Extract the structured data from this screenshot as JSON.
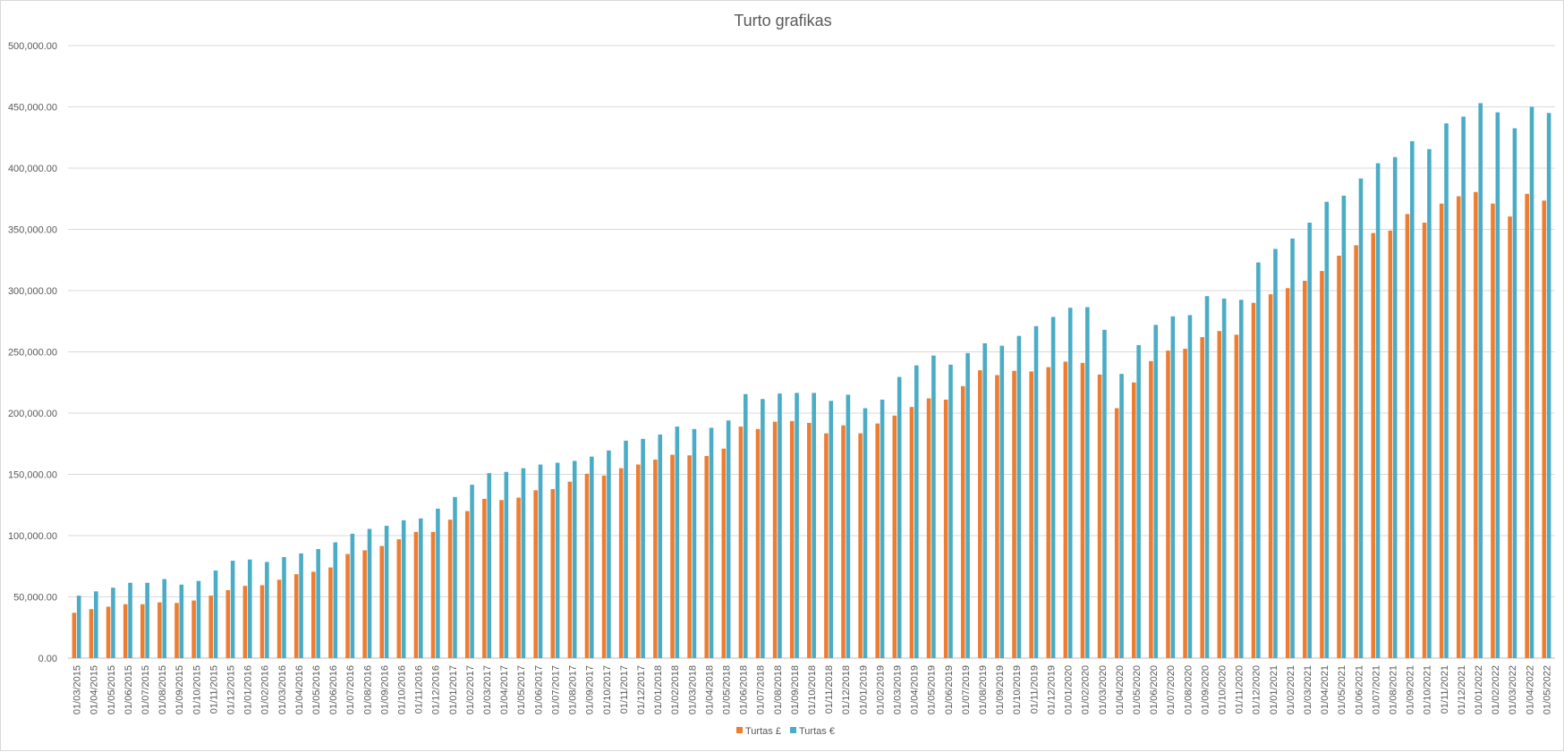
{
  "chart_data": {
    "type": "bar",
    "title": "Turto grafikas",
    "xlabel": "",
    "ylabel": "",
    "ylim": [
      0,
      500000
    ],
    "yticks": [
      "0.00",
      "50,000.00",
      "100,000.00",
      "150,000.00",
      "200,000.00",
      "250,000.00",
      "300,000.00",
      "350,000.00",
      "400,000.00",
      "450,000.00",
      "500,000.00"
    ],
    "grid": true,
    "legend_position": "bottom",
    "categories": [
      "01/03/2015",
      "01/04/2015",
      "01/05/2015",
      "01/06/2015",
      "01/07/2015",
      "01/08/2015",
      "01/09/2015",
      "01/10/2015",
      "01/11/2015",
      "01/12/2015",
      "01/01/2016",
      "01/02/2016",
      "01/03/2016",
      "01/04/2016",
      "01/05/2016",
      "01/06/2016",
      "01/07/2016",
      "01/08/2016",
      "01/09/2016",
      "01/10/2016",
      "01/11/2016",
      "01/12/2016",
      "01/01/2017",
      "01/02/2017",
      "01/03/2017",
      "01/04/2017",
      "01/05/2017",
      "01/06/2017",
      "01/07/2017",
      "01/08/2017",
      "01/09/2017",
      "01/10/2017",
      "01/11/2017",
      "01/12/2017",
      "01/01/2018",
      "01/02/2018",
      "01/03/2018",
      "01/04/2018",
      "01/05/2018",
      "01/06/2018",
      "01/07/2018",
      "01/08/2018",
      "01/09/2018",
      "01/10/2018",
      "01/11/2018",
      "01/12/2018",
      "01/01/2019",
      "01/02/2019",
      "01/03/2019",
      "01/04/2019",
      "01/05/2019",
      "01/06/2019",
      "01/07/2019",
      "01/08/2019",
      "01/09/2019",
      "01/10/2019",
      "01/11/2019",
      "01/12/2019",
      "01/01/2020",
      "01/02/2020",
      "01/03/2020",
      "01/04/2020",
      "01/05/2020",
      "01/06/2020",
      "01/07/2020",
      "01/08/2020",
      "01/09/2020",
      "01/10/2020",
      "01/11/2020",
      "01/12/2020",
      "01/01/2021",
      "01/02/2021",
      "01/03/2021",
      "01/04/2021",
      "01/05/2021",
      "01/06/2021",
      "01/07/2021",
      "01/08/2021",
      "01/09/2021",
      "01/10/2021",
      "01/11/2021",
      "01/12/2021",
      "01/01/2022",
      "01/02/2022",
      "01/03/2022",
      "01/04/2022",
      "01/05/2022"
    ],
    "series": [
      {
        "name": "Turtas £",
        "color": "#ed7d31",
        "values": [
          37000,
          40000,
          42000,
          44000,
          44000,
          45500,
          45000,
          47000,
          51000,
          55500,
          59000,
          59500,
          64000,
          68500,
          70500,
          74000,
          85000,
          88000,
          91500,
          97000,
          103000,
          103000,
          113000,
          120000,
          130000,
          129000,
          131000,
          137000,
          138000,
          144000,
          150500,
          149000,
          155000,
          158000,
          162000,
          166000,
          165500,
          165000,
          171000,
          189000,
          187000,
          193000,
          193500,
          192000,
          183500,
          190000,
          183500,
          191500,
          198000,
          205000,
          212000,
          211000,
          222000,
          235000,
          231000,
          234500,
          234000,
          237500,
          242000,
          241000,
          231500,
          204000,
          225000,
          242500,
          251000,
          252500,
          262000,
          267000,
          264000,
          290000,
          297000,
          302000,
          308000,
          316000,
          328500,
          337000,
          347000,
          349000,
          362500,
          355500,
          371000,
          377000,
          380500,
          371000,
          360500,
          379000,
          373500
        ]
      },
      {
        "name": "Turtas €",
        "color": "#4bacc6",
        "values": [
          51000,
          54500,
          57500,
          61500,
          61500,
          64500,
          60000,
          63000,
          71500,
          79500,
          80500,
          78500,
          82500,
          85500,
          89000,
          94500,
          101500,
          105500,
          108000,
          112500,
          114000,
          122000,
          131500,
          141500,
          151000,
          152000,
          155000,
          158000,
          159500,
          161000,
          164500,
          169500,
          177500,
          179000,
          182500,
          189000,
          187000,
          188000,
          194000,
          215500,
          211500,
          216000,
          216500,
          216500,
          210000,
          215000,
          204000,
          211000,
          229500,
          239000,
          247000,
          239500,
          249000,
          257000,
          255000,
          263000,
          271000,
          278500,
          286000,
          286500,
          268000,
          232000,
          255500,
          272000,
          279000,
          280000,
          295500,
          293500,
          292500,
          323000,
          334000,
          342500,
          355500,
          372500,
          377500,
          391500,
          404000,
          409000,
          422000,
          415500,
          436500,
          442000,
          453000,
          445500,
          432500,
          450000,
          445000
        ]
      }
    ]
  }
}
